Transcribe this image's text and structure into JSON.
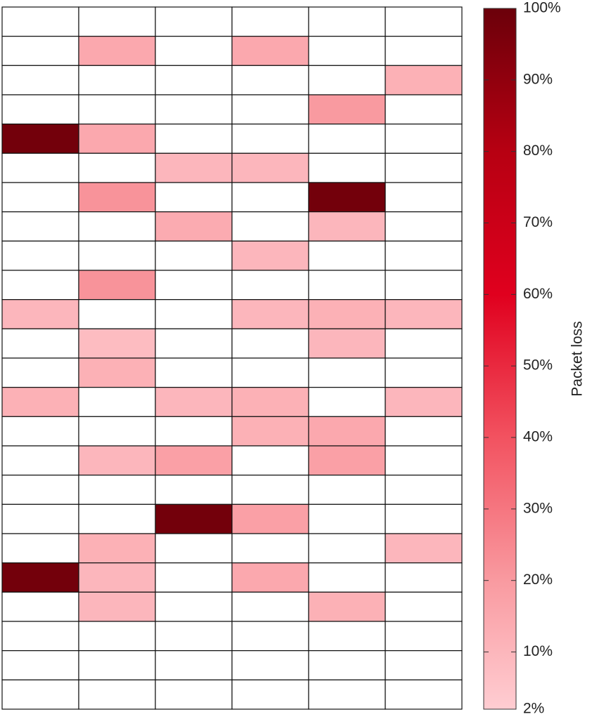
{
  "chart_data": {
    "type": "heatmap",
    "title": "",
    "xlabel": "",
    "ylabel": "",
    "n_rows": 24,
    "n_cols": 6,
    "cell_values": [
      [
        0,
        0,
        0,
        0,
        0,
        0
      ],
      [
        0,
        15,
        0,
        15,
        0,
        0
      ],
      [
        0,
        0,
        0,
        0,
        0,
        12
      ],
      [
        0,
        0,
        0,
        0,
        20,
        0
      ],
      [
        98,
        15,
        0,
        0,
        0,
        0
      ],
      [
        0,
        0,
        10,
        10,
        0,
        0
      ],
      [
        0,
        22,
        0,
        0,
        98,
        0
      ],
      [
        0,
        0,
        14,
        0,
        10,
        0
      ],
      [
        0,
        0,
        0,
        10,
        0,
        0
      ],
      [
        0,
        22,
        0,
        0,
        0,
        0
      ],
      [
        10,
        0,
        0,
        10,
        12,
        10
      ],
      [
        0,
        8,
        0,
        0,
        10,
        0
      ],
      [
        0,
        12,
        0,
        0,
        0,
        0
      ],
      [
        12,
        0,
        10,
        12,
        0,
        10
      ],
      [
        0,
        0,
        0,
        12,
        15,
        0
      ],
      [
        0,
        10,
        18,
        0,
        18,
        0
      ],
      [
        0,
        0,
        0,
        0,
        0,
        0
      ],
      [
        0,
        0,
        98,
        18,
        0,
        0
      ],
      [
        0,
        12,
        0,
        0,
        0,
        10
      ],
      [
        98,
        10,
        0,
        15,
        0,
        0
      ],
      [
        0,
        10,
        0,
        0,
        12,
        0
      ],
      [
        0,
        0,
        0,
        0,
        0,
        0
      ],
      [
        0,
        0,
        0,
        0,
        0,
        0
      ],
      [
        0,
        0,
        0,
        0,
        0,
        0
      ]
    ],
    "colorbar": {
      "label": "Packet loss",
      "min": 2,
      "max": 100,
      "ticks": [
        2,
        10,
        20,
        30,
        40,
        50,
        60,
        70,
        80,
        90,
        100
      ],
      "tick_labels": [
        "2%",
        "10%",
        "20%",
        "30%",
        "40%",
        "50%",
        "60%",
        "70%",
        "80%",
        "90%",
        "100%"
      ],
      "color_stops": [
        {
          "value": 2,
          "color": "#ffcdd2"
        },
        {
          "value": 20,
          "color": "#f99aa0"
        },
        {
          "value": 40,
          "color": "#f25260"
        },
        {
          "value": 60,
          "color": "#e0001e"
        },
        {
          "value": 80,
          "color": "#b70012"
        },
        {
          "value": 100,
          "color": "#6b000a"
        }
      ]
    },
    "colors": {
      "empty_cell": "#ffffff",
      "grid_line": "#111111"
    },
    "grid": true
  }
}
